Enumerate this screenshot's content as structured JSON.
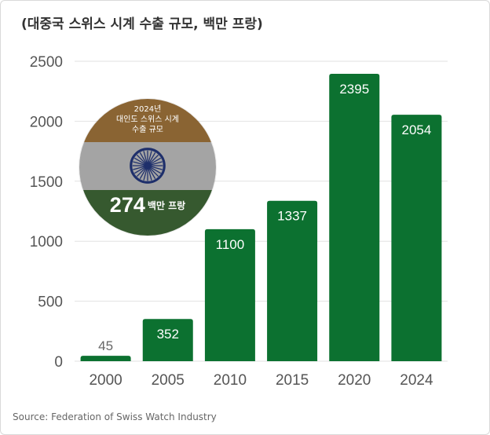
{
  "title": "(대중국 스위스 시계 수출 규모, 백만 프랑)",
  "source": "Source: Federation of Swiss Watch Industry",
  "badge": {
    "year": "2024년",
    "line1": "대인도 스위스 시계",
    "line2": "수출 규모",
    "value": "274",
    "unit": "백만 프랑",
    "flag_colors": [
      "#8a6433",
      "#a4a4a4",
      "#36592f"
    ],
    "emblem": "ashoka-chakra-icon"
  },
  "colors": {
    "bar": "#0c7130",
    "grid": "#e2e2e2",
    "axis_text": "#555555"
  },
  "chart_data": {
    "type": "bar",
    "categories": [
      "2000",
      "2005",
      "2010",
      "2015",
      "2020",
      "2024"
    ],
    "values": [
      45,
      352,
      1100,
      1337,
      2395,
      2054
    ],
    "ylim": [
      0,
      2500
    ],
    "yticks": [
      0,
      500,
      1000,
      1500,
      2000,
      2500
    ],
    "grid": true,
    "legend": "none",
    "xlabel": "",
    "ylabel": ""
  }
}
